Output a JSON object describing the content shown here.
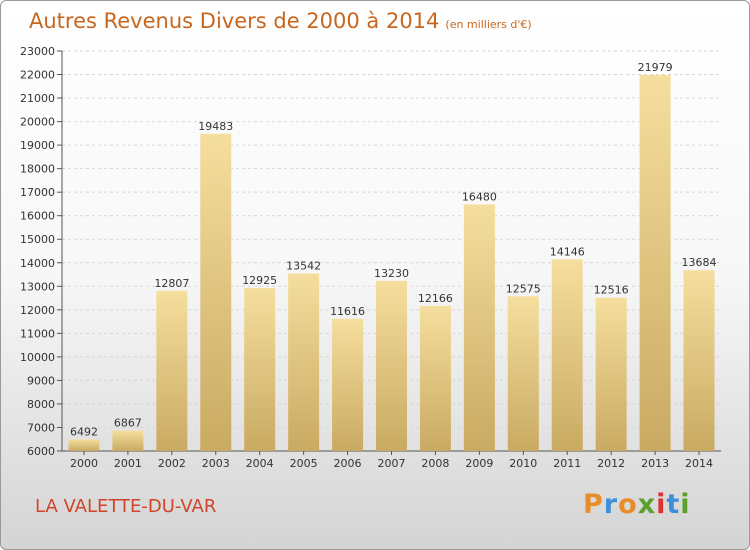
{
  "title": "Autres Revenus Divers de 2000 à 2014",
  "unit": "(en milliers d'€)",
  "city": "LA VALETTE-DU-VAR",
  "logo": {
    "text": "Proxiti",
    "letter_colors": [
      "#e98c2a",
      "#3c8fd8",
      "#e98c2a",
      "#5aa02c",
      "#e03030",
      "#3c8fd8",
      "#5aa02c"
    ]
  },
  "chart_data": {
    "type": "bar",
    "categories": [
      "2000",
      "2001",
      "2002",
      "2003",
      "2004",
      "2005",
      "2006",
      "2007",
      "2008",
      "2009",
      "2010",
      "2011",
      "2012",
      "2013",
      "2014"
    ],
    "values": [
      6492,
      6867,
      12807,
      19483,
      12925,
      13542,
      11616,
      13230,
      12166,
      16480,
      12575,
      14146,
      12516,
      21979,
      13684
    ],
    "ylim": [
      6000,
      23000
    ],
    "yticks": [
      6000,
      7000,
      8000,
      9000,
      10000,
      11000,
      12000,
      13000,
      14000,
      15000,
      16000,
      17000,
      18000,
      19000,
      20000,
      21000,
      22000,
      23000
    ],
    "grid": true,
    "bar_color": "#e6c97e"
  }
}
